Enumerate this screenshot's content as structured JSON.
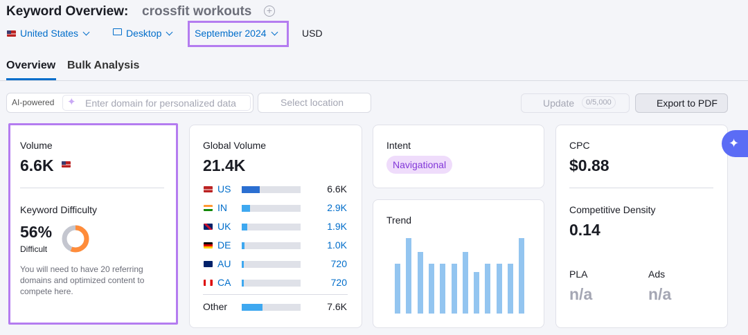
{
  "header": {
    "title": "Keyword Overview:",
    "keyword": "crossfit workouts"
  },
  "filters": {
    "country": "United States",
    "device": "Desktop",
    "date": "September 2024",
    "currency": "USD"
  },
  "tabs": [
    "Overview",
    "Bulk Analysis"
  ],
  "toolbar": {
    "ai_label": "AI-powered",
    "domain_placeholder": "Enter domain for personalized data",
    "location_placeholder": "Select location",
    "update": "Update",
    "update_count": "0/5,000",
    "export": "Export to PDF"
  },
  "volume": {
    "label": "Volume",
    "value": "6.6K"
  },
  "difficulty": {
    "label": "Keyword Difficulty",
    "score": {
      "value": 56,
      "label": "56%"
    },
    "level": "Difficult",
    "note": "You will need to have 20 referring domains and optimized content to compete here."
  },
  "global_volume": {
    "label": "Global Volume",
    "total": {
      "value": 21400,
      "label": "21.4K"
    },
    "rows": [
      {
        "code": "US",
        "volume": {
          "value": 6600,
          "label": "6.6K"
        }
      },
      {
        "code": "IN",
        "volume": {
          "value": 2900,
          "label": "2.9K"
        }
      },
      {
        "code": "UK",
        "volume": {
          "value": 1900,
          "label": "1.9K"
        }
      },
      {
        "code": "DE",
        "volume": {
          "value": 1000,
          "label": "1.0K"
        }
      },
      {
        "code": "AU",
        "volume": {
          "value": 720,
          "label": "720"
        }
      },
      {
        "code": "CA",
        "volume": {
          "value": 720,
          "label": "720"
        }
      }
    ],
    "other": {
      "label": "Other",
      "volume": {
        "value": 7600,
        "label": "7.6K"
      }
    }
  },
  "intent": {
    "label": "Intent",
    "value": "Navigational"
  },
  "trend": {
    "label": "Trend",
    "values": [
      66,
      100,
      82,
      66,
      66,
      66,
      82,
      55,
      66,
      66,
      66,
      100
    ]
  },
  "cpc": {
    "label": "CPC",
    "value": "$0.88"
  },
  "competitive_density": {
    "label": "Competitive Density",
    "value": "0.14"
  },
  "pla": {
    "label": "PLA",
    "value": "n/a"
  },
  "ads": {
    "label": "Ads",
    "value": "n/a"
  }
}
